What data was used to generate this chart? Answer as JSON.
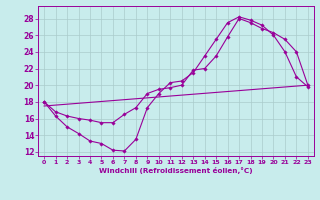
{
  "xlabel": "Windchill (Refroidissement éolien,°C)",
  "ylabel": "",
  "xlim": [
    -0.5,
    23.5
  ],
  "ylim": [
    11.5,
    29.5
  ],
  "yticks": [
    12,
    14,
    16,
    18,
    20,
    22,
    24,
    26,
    28
  ],
  "xticks": [
    0,
    1,
    2,
    3,
    4,
    5,
    6,
    7,
    8,
    9,
    10,
    11,
    12,
    13,
    14,
    15,
    16,
    17,
    18,
    19,
    20,
    21,
    22,
    23
  ],
  "bg_color": "#c8ecec",
  "line_color": "#990099",
  "grid_color": "#aacccc",
  "curves": [
    {
      "x": [
        0,
        1,
        2,
        3,
        4,
        5,
        6,
        7,
        8,
        9,
        10,
        11,
        12,
        13,
        14,
        15,
        16,
        17,
        18,
        19,
        20,
        21,
        22,
        23
      ],
      "y": [
        18,
        16.3,
        15.0,
        14.2,
        13.3,
        13.0,
        12.2,
        12.1,
        13.5,
        17.3,
        19.0,
        20.3,
        20.5,
        21.5,
        23.5,
        25.5,
        27.5,
        28.2,
        27.8,
        27.2,
        26.0,
        24.0,
        21.0,
        19.8
      ],
      "has_markers": true
    },
    {
      "x": [
        0,
        1,
        2,
        3,
        4,
        5,
        6,
        7,
        8,
        9,
        10,
        11,
        12,
        13,
        14,
        15,
        16,
        17,
        18,
        19,
        20,
        21,
        22,
        23
      ],
      "y": [
        18,
        16.8,
        16.3,
        16.0,
        15.8,
        15.5,
        15.5,
        16.5,
        17.3,
        19.0,
        19.5,
        19.7,
        20.0,
        21.8,
        22.0,
        23.5,
        25.8,
        28.0,
        27.5,
        26.8,
        26.3,
        25.5,
        24.0,
        20.0
      ],
      "has_markers": true
    },
    {
      "x": [
        0,
        23
      ],
      "y": [
        17.5,
        20.0
      ],
      "has_markers": false
    }
  ]
}
